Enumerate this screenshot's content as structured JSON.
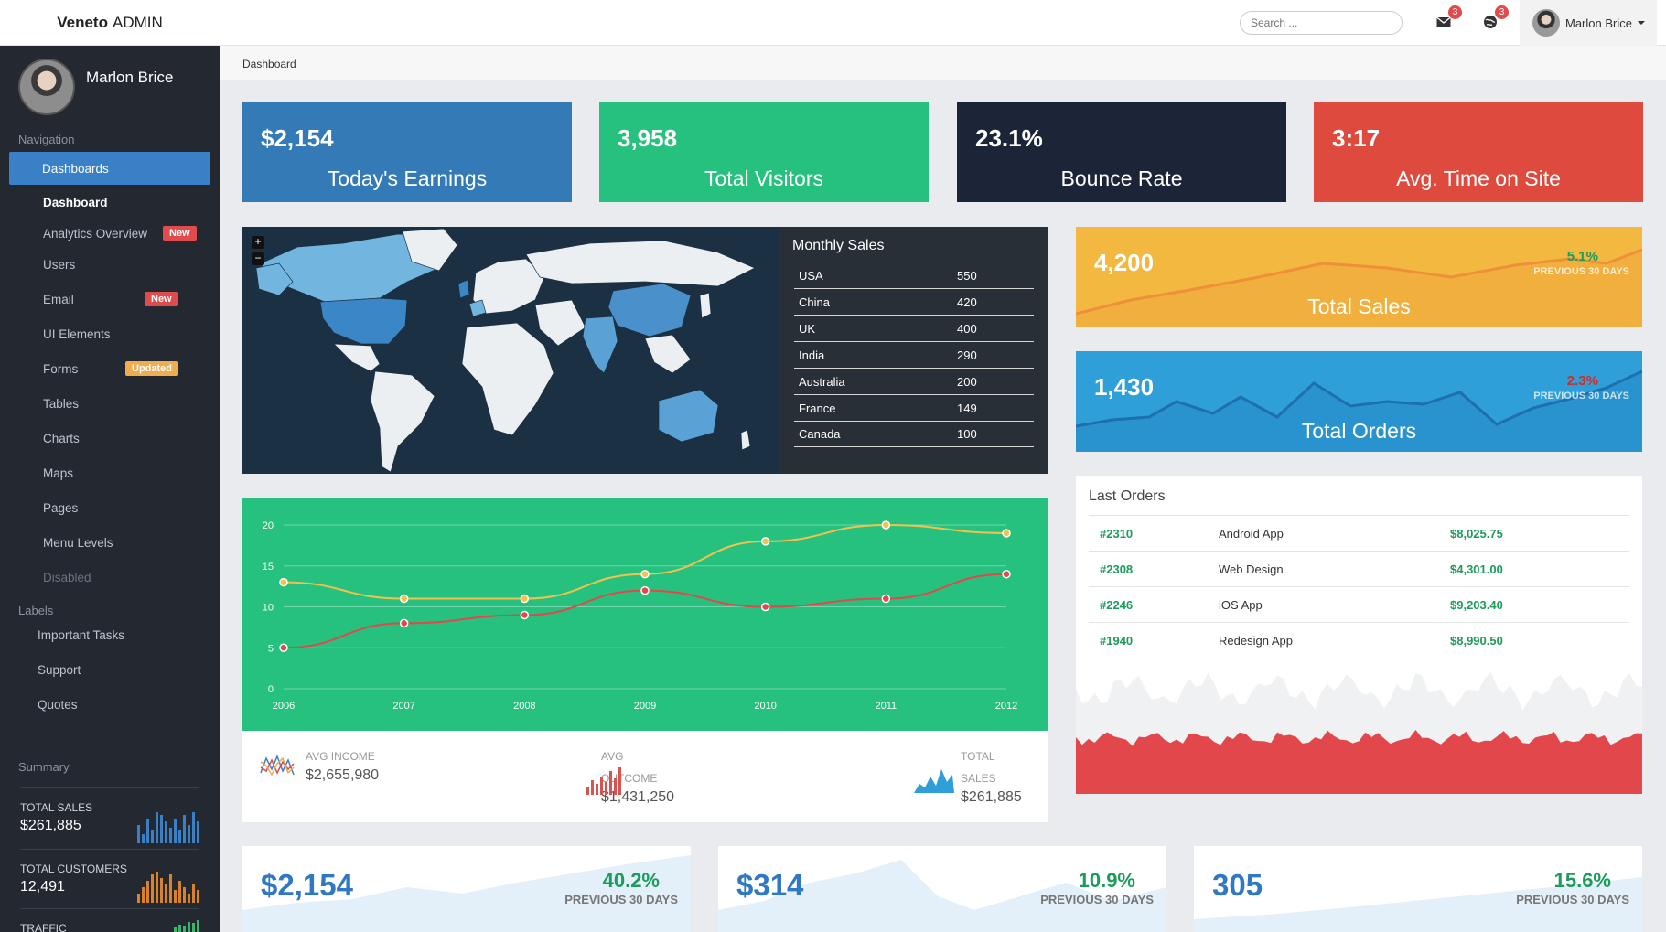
{
  "brand": {
    "bold": "Veneto",
    "rest": "ADMIN"
  },
  "profile": {
    "name": "Marlon Brice"
  },
  "nav": {
    "title": "Navigation",
    "items": [
      {
        "label": "Dashboards"
      },
      {
        "label": "Dashboard"
      },
      {
        "label": "Analytics Overview",
        "badge": "New"
      },
      {
        "label": "Users"
      },
      {
        "label": "Email",
        "badge": "New"
      },
      {
        "label": "UI Elements"
      },
      {
        "label": "Forms",
        "badge": "Updated"
      },
      {
        "label": "Tables"
      },
      {
        "label": "Charts"
      },
      {
        "label": "Maps"
      },
      {
        "label": "Pages"
      },
      {
        "label": "Menu Levels"
      },
      {
        "label": "Disabled"
      }
    ]
  },
  "labels": {
    "title": "Labels",
    "items": [
      "Important Tasks",
      "Support",
      "Quotes"
    ]
  },
  "summary": {
    "title": "Summary",
    "items": [
      {
        "label": "TOTAL SALES",
        "value": "$261,885",
        "color": "#3a80c7",
        "bars": [
          6,
          3,
          8,
          4,
          10,
          9,
          7,
          5,
          8,
          4,
          9,
          6,
          10,
          7
        ]
      },
      {
        "label": "TOTAL CUSTOMERS",
        "value": "12,491",
        "color": "#d9822b",
        "bars": [
          3,
          5,
          7,
          9,
          10,
          8,
          6,
          9,
          4,
          7,
          5,
          3,
          6,
          4
        ]
      },
      {
        "label": "TRAFFIC",
        "value": "",
        "color": "#3ab56b",
        "bars": [
          4,
          6,
          5,
          8,
          7,
          9
        ]
      }
    ]
  },
  "topbar": {
    "search_placeholder": "Search ...",
    "mail_count": "3",
    "alerts_count": "3",
    "user_name": "Marlon Brice"
  },
  "breadcrumb": "Dashboard",
  "tiles": [
    {
      "value": "$2,154",
      "label": "Today's Earnings",
      "color": "#337ab7"
    },
    {
      "value": "3,958",
      "label": "Total Visitors",
      "color": "#26c17e"
    },
    {
      "value": "23.1%",
      "label": "Bounce Rate",
      "color": "#1c2538"
    },
    {
      "value": "3:17",
      "label": "Avg. Time on Site",
      "color": "#de4b3e"
    }
  ],
  "monthly_sales": {
    "title": "Monthly Sales",
    "rows": [
      {
        "country": "USA",
        "value": "550"
      },
      {
        "country": "China",
        "value": "420"
      },
      {
        "country": "UK",
        "value": "400"
      },
      {
        "country": "India",
        "value": "290"
      },
      {
        "country": "Australia",
        "value": "200"
      },
      {
        "country": "France",
        "value": "149"
      },
      {
        "country": "Canada",
        "value": "100"
      }
    ]
  },
  "side_cards": [
    {
      "value": "4,200",
      "label": "Total Sales",
      "pct": "5.1%",
      "prev": "PREVIOUS 30 DAYS",
      "color": "#f3b840",
      "pct_color": "#1d9b5c"
    },
    {
      "value": "1,430",
      "label": "Total Orders",
      "pct": "2.3%",
      "prev": "PREVIOUS 30 DAYS",
      "color": "#2e9fd9",
      "pct_color": "#c9302c"
    }
  ],
  "chart_data": {
    "type": "line",
    "x": [
      "2006",
      "2007",
      "2008",
      "2009",
      "2010",
      "2011",
      "2012"
    ],
    "ylim": [
      0,
      20
    ],
    "yticks": [
      "0",
      "5",
      "10",
      "15",
      "20"
    ],
    "series": [
      {
        "values": [
          13,
          11,
          11,
          14,
          18,
          20,
          19
        ],
        "color": "#f2c14e"
      },
      {
        "values": [
          5,
          8,
          9,
          12,
          10,
          11,
          14
        ],
        "color": "#e2474b"
      }
    ]
  },
  "chart_footer": [
    {
      "label": "AVG INCOME",
      "value": "$2,655,980"
    },
    {
      "label1": "AVG",
      "label2": "OUTCOME",
      "value": "$1,431,250"
    },
    {
      "label1": "TOTAL",
      "label2": "SALES",
      "value": "$261,885"
    }
  ],
  "last_orders": {
    "title": "Last Orders",
    "rows": [
      {
        "id": "#2310",
        "name": "Android App",
        "amount": "$8,025.75"
      },
      {
        "id": "#2308",
        "name": "Web Design",
        "amount": "$4,301.00"
      },
      {
        "id": "#2246",
        "name": "iOS App",
        "amount": "$9,203.40"
      },
      {
        "id": "#1940",
        "name": "Redesign App",
        "amount": "$8,990.50"
      }
    ]
  },
  "bottom_tiles": [
    {
      "value": "$2,154",
      "pct": "40.2%",
      "prev": "PREVIOUS 30 DAYS"
    },
    {
      "value": "$314",
      "pct": "10.9%",
      "prev": "PREVIOUS 30 DAYS"
    },
    {
      "value": "305",
      "pct": "15.6%",
      "prev": "PREVIOUS 30 DAYS"
    }
  ]
}
